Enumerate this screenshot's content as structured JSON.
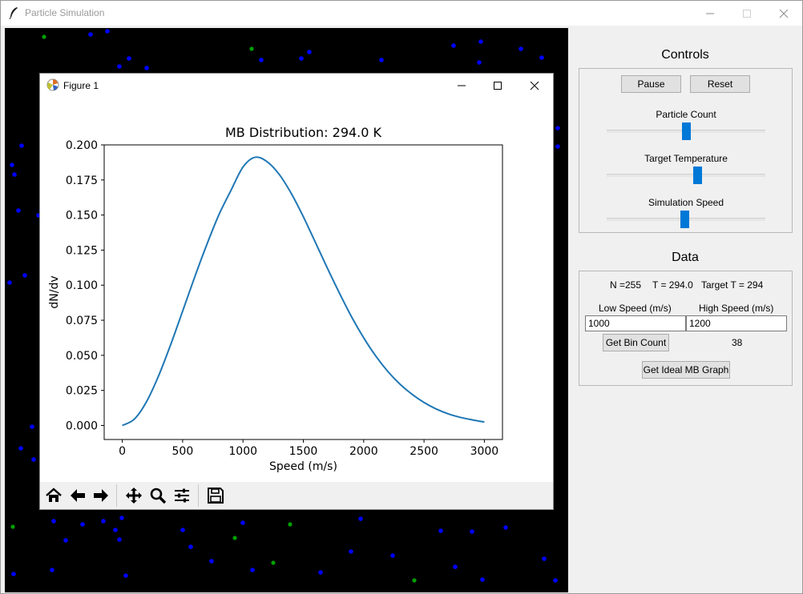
{
  "window": {
    "title": "Particle Simulation"
  },
  "figure": {
    "window_title": "Figure 1",
    "toolbar": [
      "home-icon",
      "back-arrow-icon",
      "forward-arrow-icon",
      "pan-icon",
      "zoom-icon",
      "configure-subplots-icon",
      "save-icon"
    ]
  },
  "chart_data": {
    "type": "line",
    "title": "MB Distribution: 294.0 K",
    "xlabel": "Speed (m/s)",
    "ylabel": "dN/dv",
    "xlim": [
      -150,
      3150
    ],
    "ylim": [
      -0.01,
      0.2
    ],
    "xticks": [
      "0",
      "500",
      "1000",
      "1500",
      "2000",
      "2500",
      "3000"
    ],
    "yticks": [
      "0.000",
      "0.025",
      "0.050",
      "0.075",
      "0.100",
      "0.125",
      "0.150",
      "0.175",
      "0.200"
    ],
    "series": [
      {
        "color": "#1f77b4",
        "x": [
          0,
          100,
          200,
          300,
          400,
          500,
          600,
          700,
          800,
          900,
          1000,
          1100,
          1200,
          1300,
          1400,
          1500,
          1600,
          1700,
          1800,
          1900,
          2000,
          2100,
          2200,
          2300,
          2400,
          2500,
          2600,
          2700,
          2800,
          2900,
          3000
        ],
        "y": [
          0.0,
          0.0045,
          0.0168,
          0.0352,
          0.0574,
          0.0815,
          0.1058,
          0.1289,
          0.1501,
          0.1675,
          0.1842,
          0.1912,
          0.188,
          0.179,
          0.1654,
          0.1488,
          0.1305,
          0.112,
          0.0942,
          0.0774,
          0.0625,
          0.0495,
          0.0385,
          0.0295,
          0.0223,
          0.0164,
          0.0118,
          0.0083,
          0.0058,
          0.004,
          0.0025
        ]
      }
    ]
  },
  "controls": {
    "heading": "Controls",
    "pause_label": "Pause",
    "reset_label": "Reset",
    "sliders": [
      {
        "label": "Particle Count",
        "value": 0.5
      },
      {
        "label": "Target Temperature",
        "value": 0.58
      },
      {
        "label": "Simulation Speed",
        "value": 0.49
      }
    ]
  },
  "data": {
    "heading": "Data",
    "n_label": "N =255",
    "t_label": "T = 294.0",
    "target_label": "Target T = 294",
    "low_label": "Low Speed (m/s)",
    "high_label": "High Speed (m/s)",
    "low_value": "1000",
    "high_value": "1200",
    "bin_button": "Get Bin Count",
    "bin_count": "38",
    "ideal_button": "Get Ideal MB Graph"
  },
  "colors": {
    "particle_blue": "#0000ff",
    "particle_green": "#00a000",
    "slider_thumb": "#0078d7",
    "line": "#1f77b4"
  }
}
